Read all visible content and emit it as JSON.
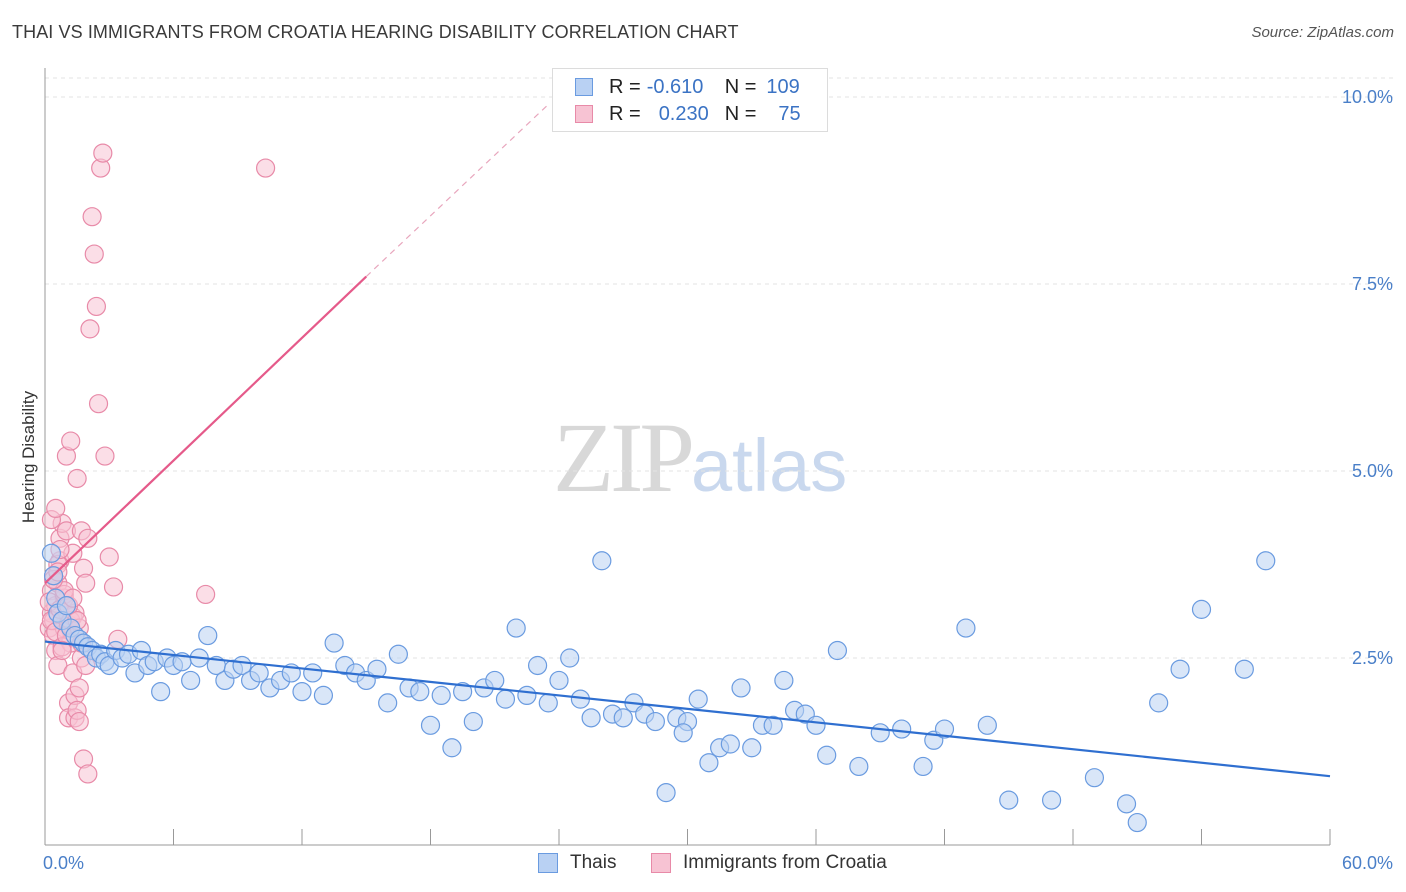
{
  "title": "THAI VS IMMIGRANTS FROM CROATIA HEARING DISABILITY CORRELATION CHART",
  "source": "Source: ZipAtlas.com",
  "watermark": {
    "zip": "ZIP",
    "atlas": "atlas"
  },
  "legend": {
    "rows": [
      {
        "r_label": "R =",
        "r_value": "-0.610",
        "n_label": "N =",
        "n_value": "109",
        "color": "#6a9be0",
        "fill": "#b9d1f3"
      },
      {
        "r_label": "R =",
        "r_value": "0.230",
        "n_label": "N =",
        "n_value": "75",
        "color": "#e88aa8",
        "fill": "#f7c3d3"
      }
    ]
  },
  "bottom_legend": [
    {
      "label": "Thais",
      "color": "#6a9be0",
      "fill": "#b9d1f3"
    },
    {
      "label": "Immigrants from Croatia",
      "color": "#e88aa8",
      "fill": "#f7c3d3"
    }
  ],
  "chart_data": {
    "type": "scatter",
    "title": "THAI VS IMMIGRANTS FROM CROATIA HEARING DISABILITY CORRELATION CHART",
    "xlabel": "",
    "ylabel": "Hearing Disability",
    "xlim": [
      0,
      60
    ],
    "ylim": [
      0,
      10.5
    ],
    "x_tick_labels": [
      "0.0%",
      "60.0%"
    ],
    "y_ticks": [
      2.5,
      5.0,
      7.5,
      10.0
    ],
    "y_tick_labels": [
      "2.5%",
      "5.0%",
      "7.5%",
      "10.0%"
    ],
    "grid": true,
    "legend_position": "top-center",
    "series": [
      {
        "name": "Thais",
        "color": "#6a9be0",
        "fill": "#b9d1f3",
        "trend": {
          "x": [
            0,
            60
          ],
          "y": [
            2.72,
            0.92
          ],
          "color": "#2f6fd0"
        },
        "x": [
          0.3,
          0.4,
          0.5,
          0.6,
          0.8,
          1.0,
          1.2,
          1.4,
          1.6,
          1.8,
          2.0,
          2.2,
          2.4,
          2.6,
          2.8,
          3.0,
          3.3,
          3.6,
          3.9,
          4.2,
          4.5,
          4.8,
          5.1,
          5.4,
          5.7,
          6.0,
          6.4,
          6.8,
          7.2,
          7.6,
          8.0,
          8.4,
          8.8,
          9.2,
          9.6,
          10.0,
          10.5,
          11.0,
          11.5,
          12.0,
          12.5,
          13.0,
          13.5,
          14.0,
          14.5,
          15.0,
          15.5,
          16.0,
          16.5,
          17.0,
          17.5,
          18.0,
          18.5,
          19.0,
          19.5,
          20.0,
          20.5,
          21.0,
          21.5,
          22.0,
          22.5,
          23.0,
          23.5,
          24.0,
          24.5,
          25.0,
          25.5,
          26.0,
          26.5,
          27.0,
          27.5,
          28.0,
          28.5,
          29.0,
          29.5,
          30.0,
          30.5,
          31.0,
          31.5,
          32.0,
          32.5,
          33.0,
          33.5,
          34.0,
          34.5,
          35.0,
          35.5,
          36.0,
          36.5,
          37.0,
          38.0,
          39.0,
          40.0,
          41.0,
          41.5,
          42.0,
          43.0,
          44.0,
          45.0,
          47.0,
          49.0,
          50.5,
          51.0,
          52.0,
          53.0,
          54.0,
          56.0,
          57.0,
          29.8
        ],
        "y": [
          3.9,
          3.6,
          3.3,
          3.1,
          3.0,
          3.2,
          2.9,
          2.8,
          2.75,
          2.7,
          2.65,
          2.6,
          2.5,
          2.55,
          2.45,
          2.4,
          2.6,
          2.5,
          2.55,
          2.3,
          2.6,
          2.4,
          2.45,
          2.05,
          2.5,
          2.4,
          2.45,
          2.2,
          2.5,
          2.8,
          2.4,
          2.2,
          2.35,
          2.4,
          2.2,
          2.3,
          2.1,
          2.2,
          2.3,
          2.05,
          2.3,
          2.0,
          2.7,
          2.4,
          2.3,
          2.2,
          2.35,
          1.9,
          2.55,
          2.1,
          2.05,
          1.6,
          2.0,
          1.3,
          2.05,
          1.65,
          2.1,
          2.2,
          1.95,
          2.9,
          2.0,
          2.4,
          1.9,
          2.2,
          2.5,
          1.95,
          1.7,
          3.8,
          1.75,
          1.7,
          1.9,
          1.75,
          1.65,
          0.7,
          1.7,
          1.65,
          1.95,
          1.1,
          1.3,
          1.35,
          2.1,
          1.3,
          1.6,
          1.6,
          2.2,
          1.8,
          1.75,
          1.6,
          1.2,
          2.6,
          1.05,
          1.5,
          1.55,
          1.05,
          1.4,
          1.55,
          2.9,
          1.6,
          0.6,
          0.6,
          0.9,
          0.55,
          0.3,
          1.9,
          2.35,
          3.15,
          2.35,
          3.8,
          1.5
        ]
      },
      {
        "name": "Immigrants from Croatia",
        "color": "#e88aa8",
        "fill": "#f7c3d3",
        "trend": {
          "x": [
            0,
            15
          ],
          "y": [
            3.5,
            7.6
          ],
          "extension": {
            "x": [
              15,
              23.5
            ],
            "y": [
              7.6,
              9.9
            ]
          },
          "color": "#e55a8a"
        },
        "x": [
          0.2,
          0.3,
          0.3,
          0.4,
          0.4,
          0.5,
          0.5,
          0.6,
          0.6,
          0.7,
          0.7,
          0.8,
          0.8,
          0.9,
          0.9,
          1.0,
          1.0,
          1.1,
          1.1,
          1.2,
          1.2,
          1.3,
          1.3,
          1.4,
          1.4,
          1.5,
          1.5,
          1.6,
          1.6,
          1.7,
          1.7,
          1.8,
          1.8,
          1.9,
          1.9,
          2.0,
          2.0,
          2.1,
          2.2,
          2.3,
          2.4,
          2.5,
          2.6,
          2.7,
          2.8,
          3.0,
          3.2,
          3.4,
          0.2,
          0.3,
          0.5,
          0.7,
          0.9,
          1.1,
          1.3,
          0.4,
          0.6,
          0.8,
          1.0,
          1.2,
          1.4,
          1.6,
          0.3,
          0.5,
          0.7,
          0.9,
          1.1,
          1.3,
          1.5,
          1.7,
          0.4,
          0.6,
          0.8,
          7.5,
          10.3
        ],
        "y": [
          2.9,
          3.1,
          3.4,
          2.8,
          3.0,
          2.6,
          3.2,
          3.5,
          2.4,
          3.8,
          4.1,
          4.3,
          3.0,
          2.9,
          3.3,
          5.2,
          4.2,
          1.9,
          1.7,
          5.4,
          2.7,
          3.9,
          2.3,
          2.0,
          1.7,
          4.9,
          1.8,
          2.1,
          1.65,
          4.2,
          2.5,
          3.7,
          1.15,
          3.5,
          2.4,
          4.1,
          0.95,
          6.9,
          8.4,
          7.9,
          7.2,
          5.9,
          9.05,
          9.25,
          5.2,
          3.85,
          3.45,
          2.75,
          3.25,
          3.0,
          2.85,
          3.15,
          3.35,
          2.95,
          3.05,
          3.6,
          3.75,
          2.65,
          2.8,
          3.0,
          3.1,
          2.9,
          4.35,
          4.5,
          3.95,
          3.4,
          3.2,
          3.3,
          3.0,
          2.7,
          3.55,
          3.65,
          2.6,
          3.35,
          9.05
        ]
      }
    ]
  }
}
